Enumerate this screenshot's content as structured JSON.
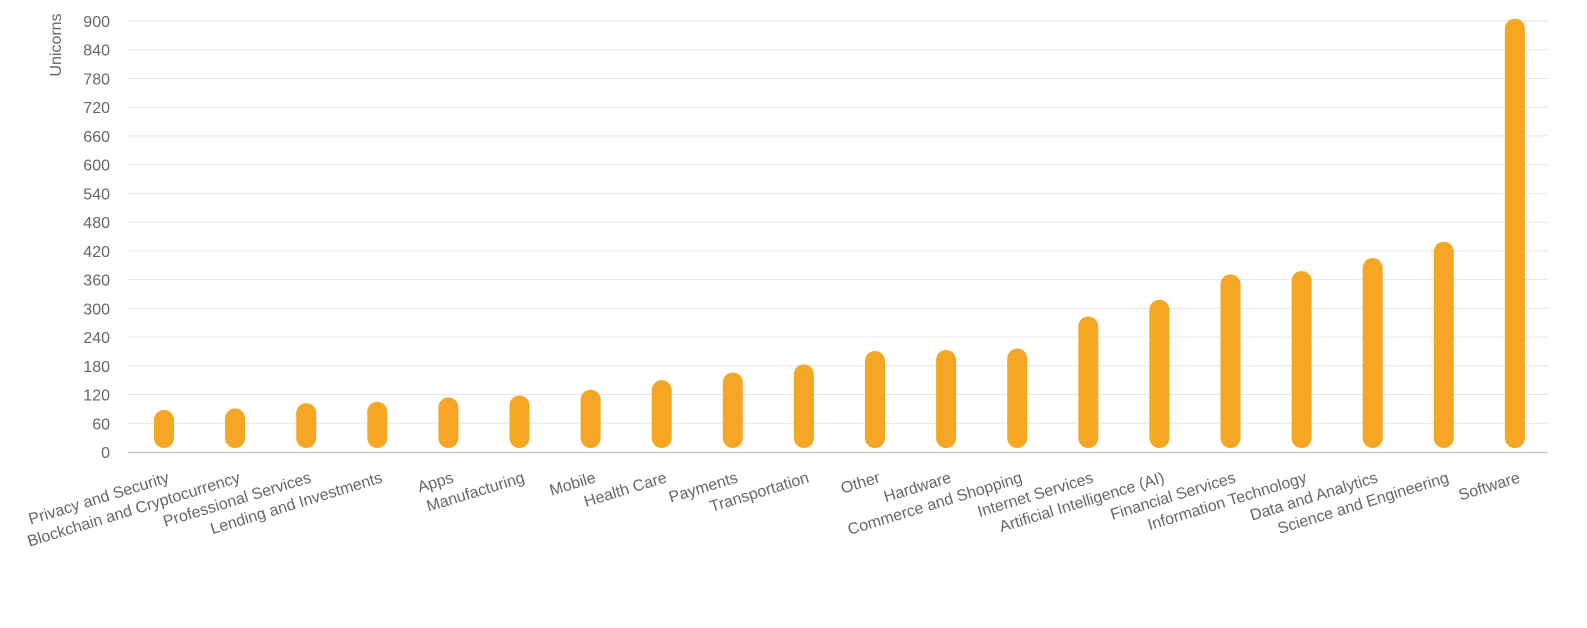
{
  "colors": {
    "bar": "#f5a623",
    "grid": "#e6e6e6",
    "text": "#666666"
  },
  "chart_data": {
    "type": "bar",
    "title": "",
    "xlabel": "",
    "ylabel": "Unicorns",
    "ylim": [
      0,
      900
    ],
    "y_ticks": [
      0,
      60,
      120,
      180,
      240,
      300,
      360,
      420,
      480,
      540,
      600,
      660,
      720,
      780,
      840,
      900
    ],
    "grid": true,
    "legend": "none",
    "categories": [
      "Privacy and Security",
      "Blockchain and Cryptocurrency",
      "Professional Services",
      "Lending and Investments",
      "Apps",
      "Manufacturing",
      "Mobile",
      "Health Care",
      "Payments",
      "Transportation",
      "Other",
      "Hardware",
      "Commerce and Shopping",
      "Internet Services",
      "Artificial Intelligence (AI)",
      "Financial Services",
      "Information Technology",
      "Data and Analytics",
      "Science and Engineering",
      "Software"
    ],
    "values": [
      88,
      91,
      102,
      105,
      114,
      118,
      130,
      150,
      166,
      183,
      211,
      213,
      216,
      283,
      318,
      371,
      378,
      405,
      439,
      905
    ]
  }
}
